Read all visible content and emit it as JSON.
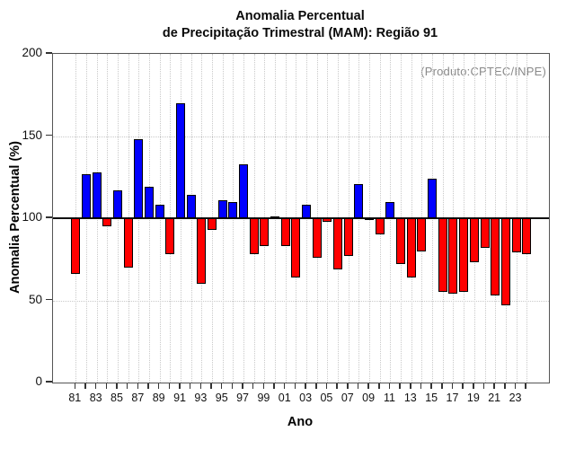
{
  "chart_data": {
    "type": "bar",
    "title": "Anomalia Percentual",
    "subtitle": "de Precipitação Trimestral (MAM): Região 91",
    "watermark": "(Produto:CPTEC/INPE)",
    "xlabel": "Ano",
    "ylabel": "Anomalia Percentual (%)",
    "ylim": [
      0,
      200
    ],
    "yticks": [
      0,
      50,
      100,
      150,
      200
    ],
    "baseline": 100,
    "grid_values": [
      50,
      150
    ],
    "x_label_every": 2,
    "grid": "dotted",
    "legend_position": "none",
    "categories": [
      "81",
      "82",
      "83",
      "84",
      "85",
      "86",
      "87",
      "88",
      "89",
      "90",
      "91",
      "92",
      "93",
      "94",
      "95",
      "96",
      "97",
      "98",
      "99",
      "00",
      "01",
      "02",
      "03",
      "04",
      "05",
      "06",
      "07",
      "08",
      "09",
      "10",
      "11",
      "12",
      "13",
      "14",
      "15",
      "16",
      "17",
      "18",
      "19",
      "20",
      "21",
      "22",
      "23",
      "24"
    ],
    "values": [
      66,
      127,
      128,
      95,
      117,
      70,
      148,
      119,
      108,
      78,
      170,
      114,
      60,
      93,
      111,
      110,
      133,
      78,
      83,
      101,
      83,
      64,
      108,
      76,
      98,
      69,
      77,
      121,
      100,
      90,
      110,
      72,
      64,
      80,
      124,
      55,
      54,
      55,
      73,
      82,
      53,
      47,
      79,
      78
    ],
    "colors": {
      "above_baseline": "#0000ff",
      "below_baseline": "#ff0000",
      "bar_border": "#000000",
      "grid": "#c9c9c9",
      "baseline_line": "#111111",
      "watermark_text": "#8a8a8a"
    }
  }
}
